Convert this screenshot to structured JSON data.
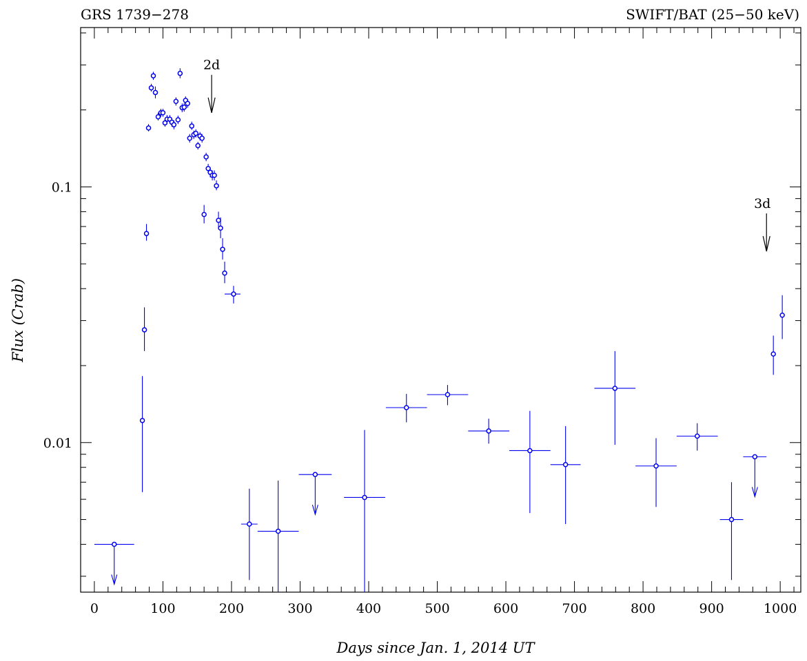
{
  "chart_data": {
    "type": "scatter",
    "title_left": "GRS 1739−278",
    "title_right": "SWIFT/BAT (25−50 keV)",
    "xlabel": "Days since Jan. 1, 2014 UT",
    "ylabel": "Flux (Crab)",
    "xlim": [
      -20,
      1030
    ],
    "ylim": [
      0.0026,
      0.42
    ],
    "yscale": "log",
    "xticks": [
      0,
      100,
      200,
      300,
      400,
      500,
      600,
      700,
      800,
      900,
      1000
    ],
    "xtick_labels": [
      "0",
      "100",
      "200",
      "300",
      "400",
      "500",
      "600",
      "700",
      "800",
      "900",
      "1000"
    ],
    "yticks": [
      0.01,
      0.1
    ],
    "ytick_labels": [
      "0.01",
      "0.1"
    ],
    "grid": false,
    "color": "#0000ee",
    "annotations": [
      {
        "text": "2d",
        "x": 171,
        "y_top": 0.195,
        "y_bottom": 0.22
      },
      {
        "text": "3d",
        "x": 980,
        "y_top": 0.056,
        "y_bottom": 0.063
      }
    ],
    "points": [
      {
        "x": 29,
        "y": 0.004,
        "xerr": 29,
        "upper_limit": true
      },
      {
        "x": 70,
        "y": 0.0122,
        "ylo": 0.0064,
        "yhi": 0.0182
      },
      {
        "x": 73,
        "y": 0.0276,
        "ylo": 0.0228,
        "yhi": 0.0338
      },
      {
        "x": 76,
        "y": 0.0657,
        "ylo": 0.0616,
        "yhi": 0.0716
      },
      {
        "x": 79,
        "y": 0.17,
        "ylo": 0.165,
        "yhi": 0.176
      },
      {
        "x": 83,
        "y": 0.244,
        "ylo": 0.236,
        "yhi": 0.253
      },
      {
        "x": 86,
        "y": 0.272,
        "ylo": 0.262,
        "yhi": 0.282
      },
      {
        "x": 89,
        "y": 0.234,
        "ylo": 0.222,
        "yhi": 0.247
      },
      {
        "x": 93,
        "y": 0.188,
        "ylo": 0.182,
        "yhi": 0.195
      },
      {
        "x": 97,
        "y": 0.195,
        "ylo": 0.188,
        "yhi": 0.202
      },
      {
        "x": 100,
        "y": 0.195,
        "ylo": 0.188,
        "yhi": 0.202
      },
      {
        "x": 103,
        "y": 0.178,
        "ylo": 0.172,
        "yhi": 0.185
      },
      {
        "x": 106,
        "y": 0.184,
        "ylo": 0.177,
        "yhi": 0.191
      },
      {
        "x": 110,
        "y": 0.184,
        "ylo": 0.177,
        "yhi": 0.191
      },
      {
        "x": 113,
        "y": 0.179,
        "ylo": 0.172,
        "yhi": 0.186
      },
      {
        "x": 116,
        "y": 0.175,
        "ylo": 0.168,
        "yhi": 0.182
      },
      {
        "x": 119,
        "y": 0.216,
        "ylo": 0.208,
        "yhi": 0.224
      },
      {
        "x": 122,
        "y": 0.183,
        "ylo": 0.176,
        "yhi": 0.19
      },
      {
        "x": 125,
        "y": 0.278,
        "ylo": 0.266,
        "yhi": 0.291
      },
      {
        "x": 128,
        "y": 0.204,
        "ylo": 0.196,
        "yhi": 0.212
      },
      {
        "x": 131,
        "y": 0.205,
        "ylo": 0.197,
        "yhi": 0.213
      },
      {
        "x": 133,
        "y": 0.218,
        "ylo": 0.21,
        "yhi": 0.226
      },
      {
        "x": 136,
        "y": 0.212,
        "ylo": 0.204,
        "yhi": 0.22
      },
      {
        "x": 139,
        "y": 0.155,
        "ylo": 0.149,
        "yhi": 0.161
      },
      {
        "x": 142,
        "y": 0.173,
        "ylo": 0.167,
        "yhi": 0.18
      },
      {
        "x": 145,
        "y": 0.16,
        "ylo": 0.154,
        "yhi": 0.166
      },
      {
        "x": 148,
        "y": 0.162,
        "ylo": 0.156,
        "yhi": 0.168
      },
      {
        "x": 151,
        "y": 0.145,
        "ylo": 0.14,
        "yhi": 0.15
      },
      {
        "x": 154,
        "y": 0.158,
        "ylo": 0.152,
        "yhi": 0.164
      },
      {
        "x": 157,
        "y": 0.155,
        "ylo": 0.149,
        "yhi": 0.161
      },
      {
        "x": 160,
        "y": 0.078,
        "ylo": 0.072,
        "yhi": 0.085
      },
      {
        "x": 163,
        "y": 0.131,
        "ylo": 0.126,
        "yhi": 0.136
      },
      {
        "x": 166,
        "y": 0.118,
        "ylo": 0.113,
        "yhi": 0.123
      },
      {
        "x": 169,
        "y": 0.114,
        "ylo": 0.109,
        "yhi": 0.119
      },
      {
        "x": 172,
        "y": 0.111,
        "ylo": 0.106,
        "yhi": 0.116
      },
      {
        "x": 175,
        "y": 0.111,
        "ylo": 0.106,
        "yhi": 0.116
      },
      {
        "x": 178,
        "y": 0.101,
        "ylo": 0.097,
        "yhi": 0.106
      },
      {
        "x": 181,
        "y": 0.074,
        "ylo": 0.069,
        "yhi": 0.08
      },
      {
        "x": 184,
        "y": 0.069,
        "ylo": 0.063,
        "yhi": 0.076
      },
      {
        "x": 187,
        "y": 0.057,
        "ylo": 0.052,
        "yhi": 0.063
      },
      {
        "x": 190,
        "y": 0.046,
        "ylo": 0.042,
        "yhi": 0.051,
        "xerr": 2
      },
      {
        "x": 203,
        "y": 0.0381,
        "ylo": 0.035,
        "yhi": 0.041,
        "xlo": 190,
        "xhi": 213
      },
      {
        "x": 226,
        "y": 0.0048,
        "ylo": 0.0029,
        "yhi": 0.0066,
        "xerr": 12
      },
      {
        "x": 268,
        "y": 0.0045,
        "ylo": 0.0026,
        "yhi": 0.0071,
        "xerr": 30
      },
      {
        "x": 322,
        "y": 0.0075,
        "xerr": 24,
        "upper_limit": true
      },
      {
        "x": 394,
        "y": 0.0061,
        "ylo": 0.0026,
        "yhi": 0.0112,
        "xerr": 30
      },
      {
        "x": 455,
        "y": 0.0137,
        "ylo": 0.012,
        "yhi": 0.0155,
        "xerr": 30
      },
      {
        "x": 515,
        "y": 0.0154,
        "ylo": 0.014,
        "yhi": 0.0168,
        "xerr": 30
      },
      {
        "x": 575,
        "y": 0.0111,
        "ylo": 0.0099,
        "yhi": 0.0124,
        "xerr": 30
      },
      {
        "x": 635,
        "y": 0.0093,
        "ylo": 0.0053,
        "yhi": 0.0133,
        "xerr": 30
      },
      {
        "x": 687,
        "y": 0.0082,
        "ylo": 0.0048,
        "yhi": 0.0116,
        "xerr": 22
      },
      {
        "x": 759,
        "y": 0.0163,
        "ylo": 0.0098,
        "yhi": 0.0228,
        "xerr": 30
      },
      {
        "x": 819,
        "y": 0.0081,
        "ylo": 0.0056,
        "yhi": 0.0104,
        "xerr": 30
      },
      {
        "x": 879,
        "y": 0.0106,
        "ylo": 0.0093,
        "yhi": 0.0119,
        "xerr": 30
      },
      {
        "x": 929,
        "y": 0.005,
        "ylo": 0.0029,
        "yhi": 0.007,
        "xerr": 17
      },
      {
        "x": 963,
        "y": 0.0088,
        "xerr": 17,
        "upper_limit": true
      },
      {
        "x": 990,
        "y": 0.0222,
        "ylo": 0.0184,
        "yhi": 0.0262,
        "xerr": 3
      },
      {
        "x": 1003,
        "y": 0.0315,
        "ylo": 0.0254,
        "yhi": 0.0377,
        "xerr": 1
      }
    ]
  }
}
